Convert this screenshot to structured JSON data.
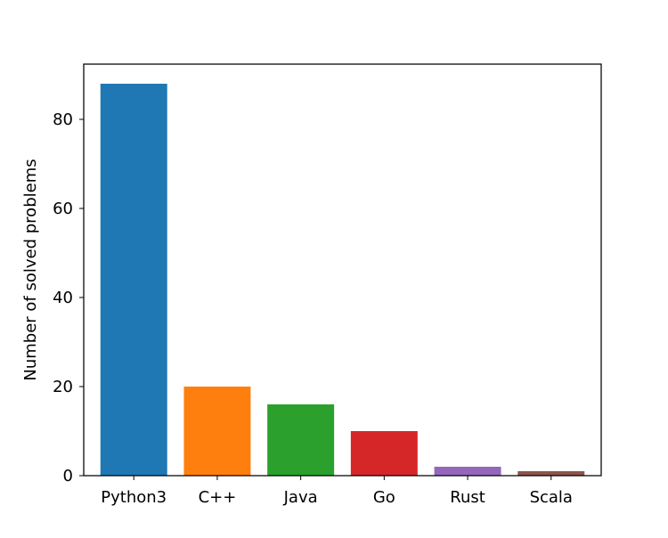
{
  "chart_data": {
    "type": "bar",
    "title": "",
    "xlabel": "",
    "ylabel": "Number of solved problems",
    "categories": [
      "Python3",
      "C++",
      "Java",
      "Go",
      "Rust",
      "Scala"
    ],
    "values": [
      88,
      20,
      16,
      10,
      2,
      1
    ],
    "colors": [
      "#1f77b4",
      "#ff7f0e",
      "#2ca02c",
      "#d62728",
      "#9467bd",
      "#8c564b"
    ],
    "ylim": [
      0,
      92.4
    ],
    "yticks": [
      0,
      20,
      40,
      60,
      80
    ],
    "grid": false,
    "legend": "none"
  }
}
